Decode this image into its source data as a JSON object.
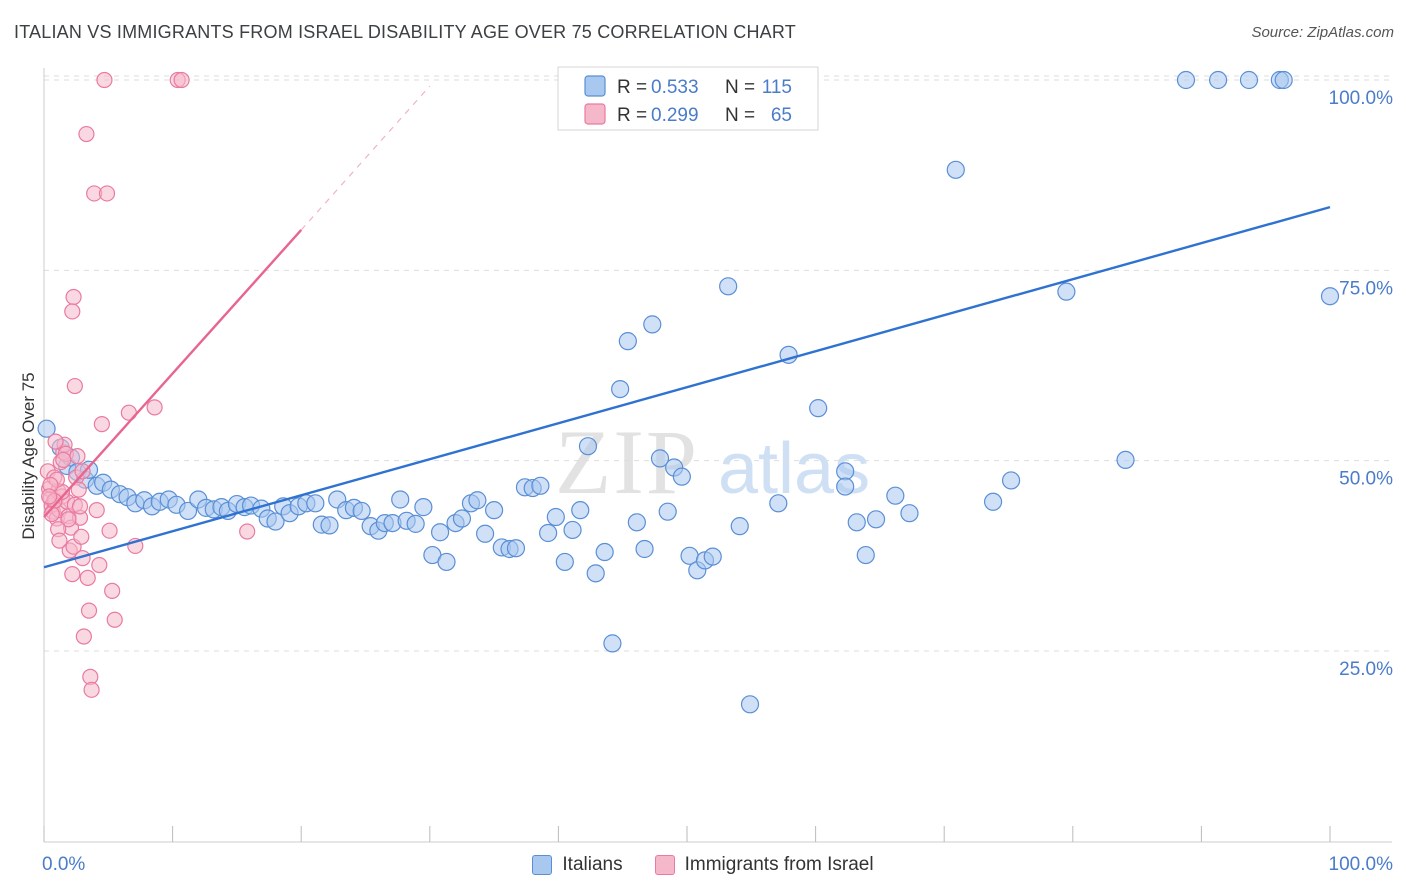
{
  "title": "ITALIAN VS IMMIGRANTS FROM ISRAEL DISABILITY AGE OVER 75 CORRELATION CHART",
  "source": "Source: ZipAtlas.com",
  "watermark": {
    "zip": "ZIP",
    "atlas": "atlas"
  },
  "colors": {
    "blue_fill": "#a9c8f0",
    "blue_stroke": "#5a8fd6",
    "blue_line": "#2f72d1",
    "pink_fill": "#f5b8cb",
    "pink_stroke": "#e97aa0",
    "pink_line": "#e8658f",
    "axis_text": "#4a7cc9",
    "grid": "#dddddd"
  },
  "legend_stats": [
    {
      "r_label": "R =",
      "r_value": "0.533",
      "n_label": "N =",
      "n_value": "115",
      "color": "blue"
    },
    {
      "r_label": "R =",
      "r_value": "0.299",
      "n_label": "N =",
      "n_value": "65",
      "color": "pink"
    }
  ],
  "chart_data": {
    "type": "scatter",
    "title": "ITALIAN VS IMMIGRANTS FROM ISRAEL DISABILITY AGE OVER 75 CORRELATION CHART",
    "xlabel": "",
    "ylabel": "Disability Age Over 75",
    "xlim": [
      0,
      100
    ],
    "ylim": [
      0,
      102
    ],
    "x_tick_labels": [
      "0.0%",
      "100.0%"
    ],
    "y_ticks": [
      25,
      50,
      75,
      100
    ],
    "y_tick_labels": [
      "25.0%",
      "50.0%",
      "75.0%",
      "100.0%"
    ],
    "grid": "horizontal dashed",
    "legend_position": "bottom",
    "series": [
      {
        "name": "Italians",
        "color": "blue",
        "trend": {
          "x0": 0,
          "y0": 36.0,
          "x1": 100,
          "y1": 83.3
        },
        "points": [
          [
            0.2,
            54.2
          ],
          [
            1.3,
            51.7
          ],
          [
            1.8,
            49.3
          ],
          [
            2.1,
            50.4
          ],
          [
            2.6,
            48.5
          ],
          [
            3.2,
            47.5
          ],
          [
            3.5,
            48.8
          ],
          [
            4.1,
            46.7
          ],
          [
            4.6,
            47.1
          ],
          [
            5.2,
            46.2
          ],
          [
            5.9,
            45.6
          ],
          [
            6.5,
            45.2
          ],
          [
            7.1,
            44.4
          ],
          [
            7.8,
            44.8
          ],
          [
            8.4,
            44.0
          ],
          [
            9.0,
            44.6
          ],
          [
            9.7,
            44.9
          ],
          [
            10.3,
            44.2
          ],
          [
            11.2,
            43.4
          ],
          [
            12.0,
            44.9
          ],
          [
            12.6,
            43.8
          ],
          [
            13.2,
            43.6
          ],
          [
            13.8,
            43.9
          ],
          [
            14.3,
            43.4
          ],
          [
            15.0,
            44.3
          ],
          [
            15.6,
            43.9
          ],
          [
            16.1,
            44.1
          ],
          [
            16.9,
            43.7
          ],
          [
            17.4,
            42.4
          ],
          [
            18.0,
            42.0
          ],
          [
            18.6,
            44.0
          ],
          [
            19.1,
            43.1
          ],
          [
            19.8,
            44.0
          ],
          [
            20.4,
            44.4
          ],
          [
            21.1,
            44.4
          ],
          [
            21.6,
            41.6
          ],
          [
            22.2,
            41.5
          ],
          [
            22.8,
            44.9
          ],
          [
            23.5,
            43.5
          ],
          [
            24.1,
            43.8
          ],
          [
            24.7,
            43.4
          ],
          [
            25.4,
            41.4
          ],
          [
            26.0,
            40.8
          ],
          [
            26.5,
            41.8
          ],
          [
            27.1,
            41.8
          ],
          [
            27.7,
            44.9
          ],
          [
            28.2,
            42.1
          ],
          [
            28.9,
            41.7
          ],
          [
            29.5,
            43.9
          ],
          [
            30.2,
            37.6
          ],
          [
            30.8,
            40.6
          ],
          [
            31.3,
            36.7
          ],
          [
            32.0,
            41.8
          ],
          [
            32.5,
            42.4
          ],
          [
            33.2,
            44.4
          ],
          [
            33.7,
            44.8
          ],
          [
            34.3,
            40.4
          ],
          [
            35.0,
            43.5
          ],
          [
            35.6,
            38.6
          ],
          [
            36.2,
            38.4
          ],
          [
            36.7,
            38.5
          ],
          [
            37.4,
            46.5
          ],
          [
            38.0,
            46.4
          ],
          [
            38.6,
            46.7
          ],
          [
            39.2,
            40.5
          ],
          [
            39.8,
            42.6
          ],
          [
            40.5,
            36.7
          ],
          [
            41.1,
            40.9
          ],
          [
            41.7,
            43.5
          ],
          [
            42.3,
            51.9
          ],
          [
            42.9,
            35.2
          ],
          [
            43.6,
            38.0
          ],
          [
            44.2,
            26.0
          ],
          [
            44.8,
            59.4
          ],
          [
            45.4,
            65.7
          ],
          [
            46.1,
            41.9
          ],
          [
            46.7,
            38.4
          ],
          [
            47.3,
            67.9
          ],
          [
            47.9,
            50.3
          ],
          [
            48.5,
            43.3
          ],
          [
            49.0,
            49.1
          ],
          [
            49.6,
            47.9
          ],
          [
            50.2,
            37.5
          ],
          [
            50.8,
            35.6
          ],
          [
            51.4,
            36.9
          ],
          [
            52.0,
            37.4
          ],
          [
            53.2,
            72.9
          ],
          [
            54.1,
            41.4
          ],
          [
            54.9,
            18.0
          ],
          [
            57.1,
            44.4
          ],
          [
            57.9,
            63.9
          ],
          [
            60.2,
            56.9
          ],
          [
            62.3,
            48.6
          ],
          [
            62.3,
            46.6
          ],
          [
            63.2,
            41.9
          ],
          [
            63.9,
            37.6
          ],
          [
            64.7,
            42.3
          ],
          [
            66.2,
            45.4
          ],
          [
            67.3,
            43.1
          ],
          [
            70.9,
            88.2
          ],
          [
            73.8,
            44.6
          ],
          [
            75.2,
            47.4
          ],
          [
            79.5,
            72.2
          ],
          [
            84.1,
            50.1
          ],
          [
            88.8,
            100
          ],
          [
            91.3,
            100
          ],
          [
            93.7,
            100
          ],
          [
            96.1,
            100
          ],
          [
            96.4,
            100
          ],
          [
            100.0,
            71.6
          ],
          [
            42.8,
            100
          ],
          [
            43.1,
            100
          ],
          [
            43.4,
            100
          ],
          [
            43.9,
            100
          ],
          [
            44.3,
            100
          ]
        ]
      },
      {
        "name": "Immigrants from Israel",
        "color": "pink",
        "trend": {
          "x0": 0,
          "y0": 42.6,
          "x1": 20,
          "y1": 80.3,
          "dashed_to": {
            "x": 30,
            "y": 99.2
          }
        },
        "points": [
          [
            0.3,
            48.6
          ],
          [
            0.4,
            46.3
          ],
          [
            0.5,
            45.0
          ],
          [
            0.6,
            44.1
          ],
          [
            0.7,
            43.3
          ],
          [
            0.8,
            47.8
          ],
          [
            0.9,
            44.8
          ],
          [
            1.0,
            42.4
          ],
          [
            1.1,
            46.0
          ],
          [
            1.2,
            43.5
          ],
          [
            1.3,
            49.8
          ],
          [
            1.4,
            45.3
          ],
          [
            1.5,
            51.1
          ],
          [
            1.6,
            52.1
          ],
          [
            1.7,
            50.9
          ],
          [
            1.8,
            44.6
          ],
          [
            1.9,
            42.7
          ],
          [
            2.0,
            38.2
          ],
          [
            2.1,
            41.2
          ],
          [
            2.2,
            35.1
          ],
          [
            2.3,
            38.7
          ],
          [
            2.4,
            44.2
          ],
          [
            2.5,
            47.8
          ],
          [
            2.6,
            50.6
          ],
          [
            2.7,
            46.2
          ],
          [
            2.8,
            42.5
          ],
          [
            2.9,
            40.0
          ],
          [
            3.0,
            37.2
          ],
          [
            3.1,
            26.9
          ],
          [
            3.3,
            92.9
          ],
          [
            3.4,
            34.6
          ],
          [
            3.5,
            30.3
          ],
          [
            3.6,
            21.6
          ],
          [
            3.7,
            19.9
          ],
          [
            3.9,
            85.1
          ],
          [
            4.1,
            43.5
          ],
          [
            4.3,
            36.3
          ],
          [
            4.5,
            54.8
          ],
          [
            4.7,
            100
          ],
          [
            4.9,
            85.1
          ],
          [
            5.1,
            40.8
          ],
          [
            5.3,
            32.9
          ],
          [
            5.5,
            29.1
          ],
          [
            6.6,
            56.3
          ],
          [
            7.1,
            38.8
          ],
          [
            8.6,
            57.0
          ],
          [
            10.4,
            100
          ],
          [
            10.7,
            100
          ],
          [
            15.8,
            40.7
          ],
          [
            2.3,
            71.5
          ],
          [
            2.2,
            69.6
          ],
          [
            2.4,
            59.8
          ],
          [
            1.9,
            42.3
          ],
          [
            1.5,
            50.1
          ],
          [
            0.9,
            52.5
          ],
          [
            2.8,
            44.0
          ],
          [
            3.0,
            48.6
          ],
          [
            1.1,
            41.0
          ],
          [
            1.4,
            45.9
          ],
          [
            1.2,
            39.5
          ],
          [
            1.0,
            47.5
          ],
          [
            0.8,
            44.7
          ],
          [
            0.6,
            43.0
          ],
          [
            0.5,
            46.8
          ],
          [
            0.4,
            45.3
          ]
        ]
      }
    ]
  }
}
